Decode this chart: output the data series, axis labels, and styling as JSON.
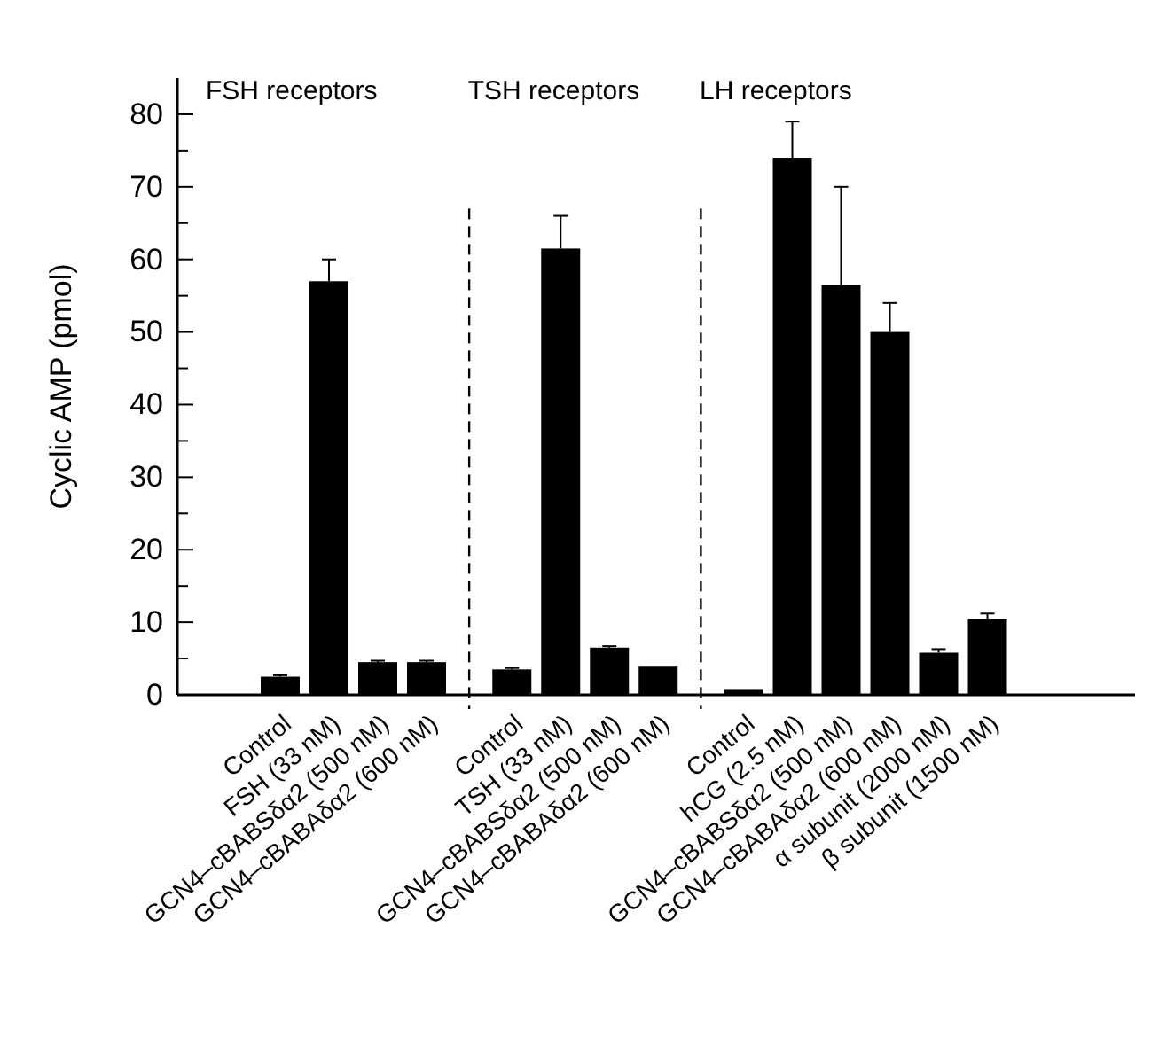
{
  "chart_data": {
    "type": "bar",
    "ylabel": "Cyclic AMP (pmol)",
    "annotations": [
      "FSH receptors",
      "TSH receptors",
      "LH receptors"
    ],
    "categories": [
      "Control",
      "FSH (33 nM)",
      "GCN4–cBABSδα2 (500 nM)",
      "GCN4–cBABAδα2 (600 nM)",
      "Control",
      "TSH (33 nM)",
      "GCN4–cBABSδα2 (500 nM)",
      "GCN4–cBABAδα2 (600 nM)",
      "Control",
      "hCG (2.5 nM)",
      "GCN4–cBABSδα2 (500 nM)",
      "GCN4–cBABAδα2 (600 nM)",
      "α subunit (2000 nM)",
      "β subunit (1500 nM)"
    ],
    "values": [
      2.5,
      57,
      4.5,
      4.5,
      3.5,
      61.5,
      6.5,
      4,
      0.8,
      74,
      56.5,
      50,
      5.8,
      10.5
    ],
    "errors": [
      0.2,
      3,
      0.2,
      0.2,
      0.2,
      4.5,
      0.2,
      null,
      null,
      5,
      13.5,
      4,
      0.5,
      0.7
    ],
    "color": "#000000",
    "ylim": [
      0,
      85
    ],
    "yticks": [
      0,
      10,
      20,
      30,
      40,
      50,
      60,
      70,
      80
    ]
  }
}
